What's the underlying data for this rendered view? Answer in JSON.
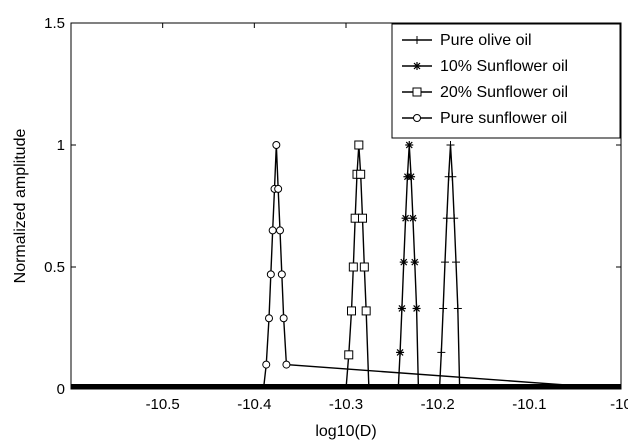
{
  "chart_data": {
    "type": "line",
    "title": "",
    "xlabel": "log10(D)",
    "ylabel": "Normalized amplitude",
    "xlim": [
      -10.6,
      -10.0
    ],
    "ylim": [
      0,
      1.5
    ],
    "x_ticks": [
      -10.5,
      -10.4,
      -10.3,
      -10.2,
      -10.1,
      -10.0
    ],
    "x_tick_labels": [
      "-10.5",
      "-10.4",
      "-10.3",
      "-10.2",
      "-10.1",
      "-10"
    ],
    "y_ticks": [
      0,
      0.5,
      1,
      1.5
    ],
    "y_tick_labels": [
      "0",
      "0.5",
      "1",
      "1.5"
    ],
    "grid": false,
    "legend_position": "top-right",
    "series": [
      {
        "name": "Pure olive oil",
        "marker": "plus",
        "color": "#000000",
        "x": [
          -10.6,
          -10.198,
          -10.196,
          -10.194,
          -10.192,
          -10.19,
          -10.188,
          -10.186,
          -10.184,
          -10.182,
          -10.18,
          -10.178,
          -10.176,
          -10.0
        ],
        "y": [
          0,
          0,
          0.15,
          0.33,
          0.52,
          0.7,
          0.87,
          1.0,
          0.87,
          0.7,
          0.52,
          0.33,
          0,
          0
        ]
      },
      {
        "name": "10% Sunflower oil",
        "marker": "star",
        "color": "#000000",
        "x": [
          -10.6,
          -10.243,
          -10.241,
          -10.239,
          -10.237,
          -10.235,
          -10.233,
          -10.231,
          -10.229,
          -10.227,
          -10.225,
          -10.223,
          -10.221,
          -10.0
        ],
        "y": [
          0,
          0,
          0.15,
          0.33,
          0.52,
          0.7,
          0.87,
          1.0,
          0.87,
          0.7,
          0.52,
          0.33,
          0,
          0
        ]
      },
      {
        "name": "20% Sunflower oil",
        "marker": "square",
        "color": "#000000",
        "x": [
          -10.6,
          -10.3,
          -10.297,
          -10.294,
          -10.292,
          -10.29,
          -10.288,
          -10.286,
          -10.284,
          -10.282,
          -10.28,
          -10.278,
          -10.275,
          -10.0
        ],
        "y": [
          0,
          0,
          0.14,
          0.32,
          0.5,
          0.7,
          0.88,
          1.0,
          0.88,
          0.7,
          0.5,
          0.32,
          0,
          0
        ]
      },
      {
        "name": "Pure sunflower oil",
        "marker": "circle",
        "color": "#000000",
        "x": [
          -10.6,
          -10.39,
          -10.387,
          -10.384,
          -10.382,
          -10.38,
          -10.378,
          -10.376,
          -10.374,
          -10.372,
          -10.37,
          -10.368,
          -10.365,
          -10.0
        ],
        "y": [
          0,
          0,
          0.1,
          0.29,
          0.47,
          0.65,
          0.82,
          1.0,
          0.82,
          0.65,
          0.47,
          0.29,
          0.1,
          0
        ]
      }
    ]
  }
}
